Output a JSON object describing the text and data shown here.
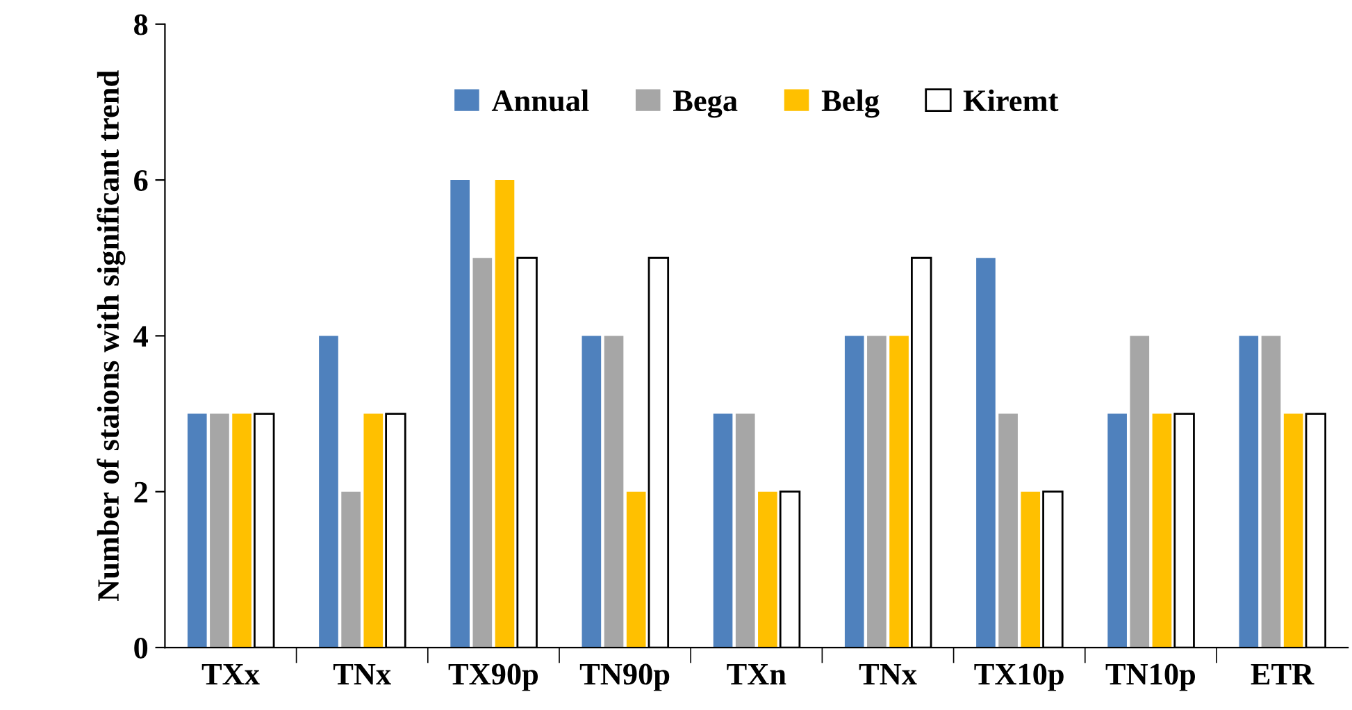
{
  "chart_data": {
    "type": "bar",
    "ylabel": "Number of staions with significant trend",
    "categories": [
      "TXx",
      "TNx",
      "TX90p",
      "TN90p",
      "TXn",
      "TNx",
      "TX10p",
      "TN10p",
      "ETR"
    ],
    "series": [
      {
        "name": "Annual",
        "color": "#4f81bd",
        "values": [
          3,
          4,
          6,
          4,
          3,
          4,
          5,
          3,
          4
        ]
      },
      {
        "name": "Bega",
        "color": "#a6a6a6",
        "values": [
          3,
          2,
          5,
          4,
          3,
          4,
          3,
          4,
          4
        ]
      },
      {
        "name": "Belg",
        "color": "#ffc000",
        "values": [
          3,
          3,
          6,
          2,
          2,
          4,
          2,
          3,
          3
        ]
      },
      {
        "name": "Kiremt",
        "color": "#ffffff",
        "values": [
          3,
          3,
          5,
          5,
          2,
          5,
          2,
          3,
          3
        ]
      }
    ],
    "ylim": [
      0,
      8
    ],
    "yticks": [
      0,
      2,
      4,
      6,
      8
    ],
    "grid": false,
    "legend": "top"
  }
}
